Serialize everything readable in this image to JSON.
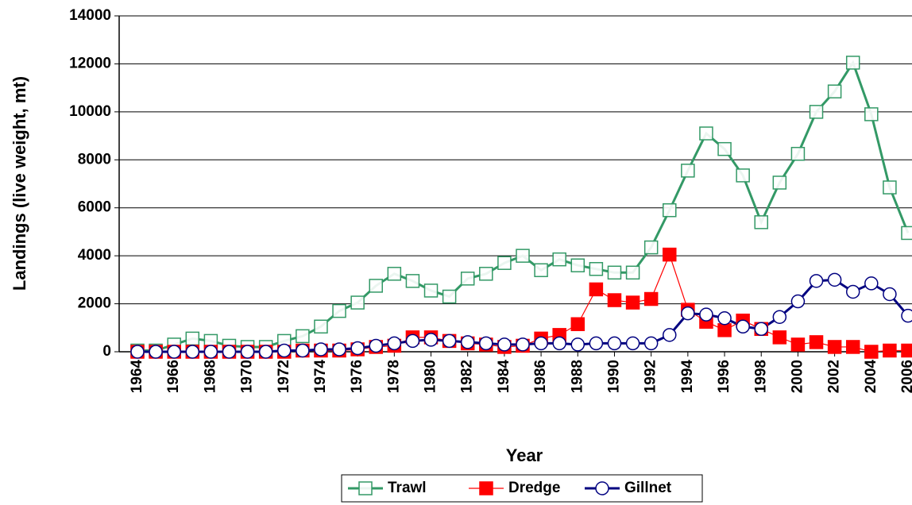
{
  "chart_data": {
    "type": "line",
    "x_label": "Year",
    "y_label": "Landings (live weight, mt)",
    "x": [
      1964,
      1965,
      1966,
      1967,
      1968,
      1969,
      1970,
      1971,
      1972,
      1973,
      1974,
      1975,
      1976,
      1977,
      1978,
      1979,
      1980,
      1981,
      1982,
      1983,
      1984,
      1985,
      1986,
      1987,
      1988,
      1989,
      1990,
      1991,
      1992,
      1993,
      1994,
      1995,
      1996,
      1997,
      1998,
      1999,
      2000,
      2001,
      2002,
      2003,
      2004,
      2005,
      2006
    ],
    "xlim": [
      1964,
      2006
    ],
    "xticks": [
      1964,
      1966,
      1968,
      1970,
      1972,
      1974,
      1976,
      1978,
      1980,
      1982,
      1984,
      1986,
      1988,
      1990,
      1992,
      1994,
      1996,
      1998,
      2000,
      2002,
      2004,
      2006
    ],
    "ylim": [
      0,
      14000
    ],
    "yticks": [
      0,
      2000,
      4000,
      6000,
      8000,
      10000,
      12000,
      14000
    ],
    "grid": true,
    "legend": "bottom",
    "series": [
      {
        "name": "Trawl",
        "color": "#339966",
        "marker": "hollow-square",
        "values": [
          50,
          50,
          300,
          550,
          450,
          250,
          200,
          200,
          450,
          650,
          1050,
          1700,
          2050,
          2750,
          3250,
          2950,
          2550,
          2300,
          3050,
          3250,
          3700,
          4000,
          3400,
          3850,
          3600,
          3450,
          3300,
          3300,
          4350,
          5900,
          7550,
          9100,
          8450,
          7350,
          5400,
          7050,
          8250,
          10000,
          10850,
          12050,
          9900,
          6850,
          4950
        ]
      },
      {
        "name": "Dredge",
        "color": "#ff0000",
        "marker": "filled-square",
        "values": [
          0,
          0,
          0,
          0,
          0,
          0,
          0,
          0,
          0,
          50,
          50,
          50,
          100,
          200,
          250,
          600,
          600,
          450,
          350,
          300,
          200,
          250,
          550,
          700,
          1150,
          2600,
          2150,
          2050,
          2200,
          4050,
          1750,
          1250,
          900,
          1300,
          950,
          600,
          300,
          400,
          200,
          200,
          0,
          50,
          50
        ]
      },
      {
        "name": "Gillnet",
        "color": "#000080",
        "marker": "hollow-circle",
        "values": [
          0,
          0,
          0,
          0,
          0,
          0,
          0,
          0,
          50,
          50,
          100,
          100,
          150,
          250,
          350,
          450,
          500,
          450,
          400,
          350,
          300,
          300,
          350,
          350,
          300,
          350,
          350,
          350,
          350,
          700,
          1600,
          1550,
          1400,
          1050,
          950,
          1450,
          2100,
          2950,
          3000,
          2500,
          2850,
          2400,
          1500
        ]
      }
    ]
  }
}
